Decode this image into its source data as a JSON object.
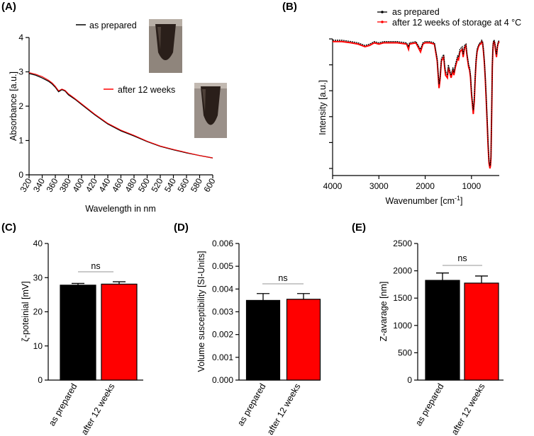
{
  "panels": {
    "A": "(A)",
    "B": "(B)",
    "C": "(C)",
    "D": "(D)",
    "E": "(E)"
  },
  "colors": {
    "prepared": "#000000",
    "stored": "#ff0000"
  },
  "photos": [
    {
      "name": "tube-photo-prepared",
      "desc": "dark brown nanoparticle dispersion"
    },
    {
      "name": "tube-photo-stored",
      "desc": "dark brown nanoparticle dispersion"
    }
  ],
  "chart_data": [
    {
      "panel": "A",
      "type": "line",
      "xlabel": "Wavelength in nm",
      "ylabel": "Absorbance [a.u.]",
      "xlim": [
        320,
        600
      ],
      "ylim": [
        0,
        4
      ],
      "xticks": [
        320,
        340,
        360,
        380,
        400,
        420,
        440,
        460,
        480,
        500,
        520,
        540,
        560,
        580,
        600
      ],
      "yticks": [
        0,
        1,
        2,
        3,
        4
      ],
      "legend": [
        "as prepared",
        "after 12 weeks"
      ],
      "series": [
        {
          "name": "as prepared",
          "x": [
            320,
            330,
            340,
            350,
            355,
            360,
            365,
            370,
            375,
            380,
            390,
            400,
            420,
            440,
            460,
            480,
            500,
            520,
            540,
            560,
            580,
            600
          ],
          "y": [
            2.95,
            2.9,
            2.82,
            2.72,
            2.65,
            2.55,
            2.42,
            2.48,
            2.44,
            2.33,
            2.2,
            2.05,
            1.75,
            1.48,
            1.28,
            1.13,
            0.97,
            0.83,
            0.73,
            0.64,
            0.56,
            0.49
          ]
        },
        {
          "name": "after 12 weeks",
          "x": [
            320,
            330,
            340,
            350,
            355,
            360,
            365,
            370,
            375,
            380,
            390,
            400,
            420,
            440,
            460,
            480,
            500,
            520,
            540,
            560,
            580,
            600
          ],
          "y": [
            2.98,
            2.93,
            2.86,
            2.75,
            2.68,
            2.58,
            2.45,
            2.5,
            2.46,
            2.36,
            2.22,
            2.07,
            1.77,
            1.5,
            1.3,
            1.15,
            0.98,
            0.84,
            0.74,
            0.65,
            0.56,
            0.49
          ]
        }
      ]
    },
    {
      "panel": "B",
      "type": "line",
      "xlabel": "Wavenumber [cm",
      "xlabel_sup": "-1",
      "xlabel_end": "]",
      "ylabel": "Intensity [a.u.]",
      "xlim": [
        4000,
        400
      ],
      "ylim": [
        0,
        1
      ],
      "xticks": [
        4000,
        3000,
        2000,
        1000
      ],
      "legend": [
        "as prepared",
        "after 12 weeks of storage at 4 °C"
      ],
      "series": [
        {
          "name": "as prepared",
          "x": [
            4000,
            3800,
            3600,
            3450,
            3300,
            3200,
            3100,
            3000,
            2900,
            2600,
            2400,
            2360,
            2340,
            2200,
            2100,
            2050,
            2000,
            1900,
            1800,
            1740,
            1700,
            1680,
            1650,
            1600,
            1580,
            1560,
            1520,
            1500,
            1470,
            1440,
            1420,
            1400,
            1380,
            1350,
            1300,
            1280,
            1250,
            1200,
            1180,
            1150,
            1120,
            1100,
            1080,
            1060,
            1040,
            1020,
            1000,
            980,
            960,
            940,
            920,
            900,
            880,
            850,
            820,
            800,
            780,
            760,
            740,
            720,
            700,
            680,
            660,
            640,
            620,
            600,
            590,
            580,
            570,
            560,
            550,
            540,
            530,
            520,
            510,
            500,
            480,
            460,
            440,
            420,
            400
          ],
          "y": [
            0.99,
            0.99,
            0.98,
            0.97,
            0.95,
            0.96,
            0.98,
            0.97,
            0.98,
            0.98,
            0.97,
            0.94,
            0.97,
            0.98,
            0.92,
            0.97,
            0.98,
            0.98,
            0.97,
            0.85,
            0.65,
            0.7,
            0.85,
            0.88,
            0.8,
            0.75,
            0.72,
            0.8,
            0.76,
            0.72,
            0.75,
            0.78,
            0.74,
            0.8,
            0.87,
            0.86,
            0.92,
            0.94,
            0.88,
            0.95,
            0.96,
            0.9,
            0.85,
            0.8,
            0.78,
            0.72,
            0.6,
            0.52,
            0.45,
            0.55,
            0.72,
            0.85,
            0.92,
            0.95,
            0.97,
            0.97,
            0.99,
            0.98,
            0.92,
            0.83,
            0.7,
            0.55,
            0.38,
            0.2,
            0.06,
            0.02,
            0.04,
            0.1,
            0.3,
            0.55,
            0.8,
            0.92,
            0.97,
            0.99,
            0.99,
            0.98,
            0.93,
            0.88,
            0.95,
            0.98,
            0.99
          ]
        },
        {
          "name": "after 12 weeks of storage at 4 °C",
          "x": [
            4000,
            3800,
            3600,
            3450,
            3300,
            3200,
            3100,
            3000,
            2900,
            2600,
            2400,
            2360,
            2340,
            2200,
            2100,
            2050,
            2000,
            1900,
            1800,
            1740,
            1700,
            1680,
            1650,
            1600,
            1580,
            1560,
            1520,
            1500,
            1470,
            1440,
            1420,
            1400,
            1380,
            1350,
            1300,
            1280,
            1250,
            1200,
            1180,
            1150,
            1120,
            1100,
            1080,
            1060,
            1040,
            1020,
            1000,
            980,
            960,
            940,
            920,
            900,
            880,
            850,
            820,
            800,
            780,
            760,
            740,
            720,
            700,
            680,
            660,
            640,
            620,
            600,
            590,
            580,
            570,
            560,
            550,
            540,
            530,
            520,
            510,
            500,
            480,
            460,
            440,
            420,
            400
          ],
          "y": [
            0.98,
            0.98,
            0.97,
            0.96,
            0.94,
            0.95,
            0.97,
            0.96,
            0.97,
            0.97,
            0.96,
            0.92,
            0.96,
            0.97,
            0.9,
            0.96,
            0.97,
            0.97,
            0.96,
            0.83,
            0.62,
            0.68,
            0.83,
            0.86,
            0.78,
            0.72,
            0.7,
            0.78,
            0.74,
            0.7,
            0.73,
            0.76,
            0.72,
            0.78,
            0.85,
            0.84,
            0.9,
            0.92,
            0.86,
            0.93,
            0.95,
            0.88,
            0.83,
            0.78,
            0.76,
            0.7,
            0.58,
            0.5,
            0.42,
            0.52,
            0.7,
            0.83,
            0.9,
            0.94,
            0.96,
            0.96,
            0.98,
            0.97,
            0.9,
            0.81,
            0.68,
            0.52,
            0.35,
            0.17,
            0.04,
            0.0,
            0.02,
            0.08,
            0.28,
            0.53,
            0.78,
            0.9,
            0.96,
            0.98,
            0.98,
            0.97,
            0.91,
            0.86,
            0.94,
            0.97,
            0.98
          ]
        }
      ]
    },
    {
      "panel": "C",
      "type": "bar",
      "categories": [
        "as prepared",
        "after 12 weeks"
      ],
      "values": [
        27.8,
        28.1
      ],
      "errors": [
        0.5,
        0.7
      ],
      "ylabel": "ζ-poteinial [mV]",
      "ylim": [
        0,
        40
      ],
      "yticks": [
        "0",
        "10",
        "20",
        "30",
        "40"
      ],
      "annotation": "ns"
    },
    {
      "panel": "D",
      "type": "bar",
      "categories": [
        "as prepared",
        "after 12 weeks"
      ],
      "values": [
        0.0035,
        0.00355
      ],
      "errors": [
        0.0003,
        0.00025
      ],
      "ylabel": "Volume susceptibility  [SI-Units]",
      "ylim": [
        0,
        0.006
      ],
      "yticks": [
        "0.000",
        "0.001",
        "0.002",
        "0.003",
        "0.004",
        "0.005",
        "0.006"
      ],
      "annotation": "ns"
    },
    {
      "panel": "E",
      "type": "bar",
      "categories": [
        "as prepared",
        "after 12 weeks"
      ],
      "values": [
        1825,
        1775
      ],
      "errors": [
        135,
        130
      ],
      "ylabel": "Z-avarage [nm]",
      "ylim": [
        0,
        2500
      ],
      "yticks": [
        "0",
        "500",
        "1000",
        "1500",
        "2000",
        "2500"
      ],
      "annotation": "ns"
    }
  ]
}
